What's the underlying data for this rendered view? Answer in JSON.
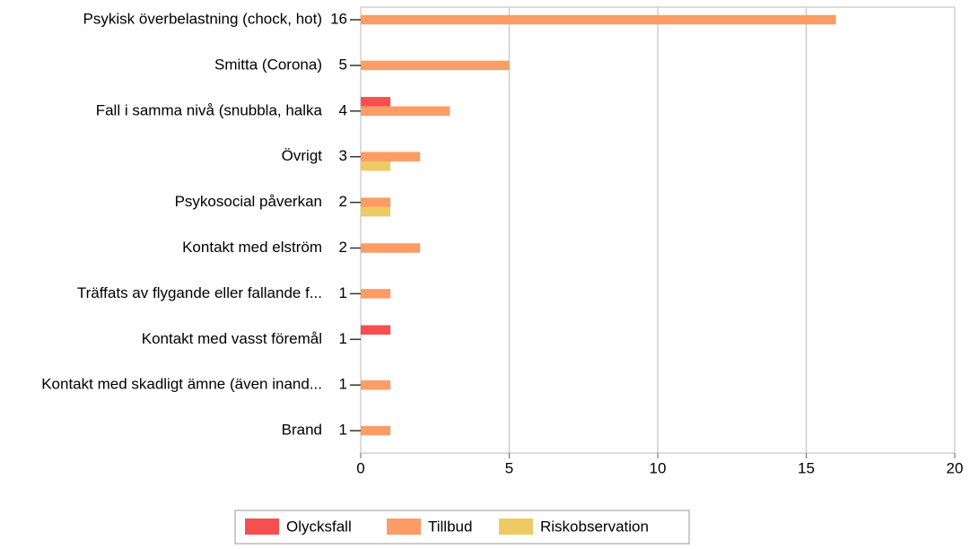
{
  "chart_data": {
    "type": "bar",
    "orientation": "horizontal",
    "categories": [
      "Psykisk överbelastning (chock, hot)",
      "Smitta (Corona)",
      "Fall i samma nivå (snubbla, halka",
      "Övrigt",
      "Psykosocial påverkan",
      "Kontakt med elström",
      "Träffats av flygande eller fallande f...",
      "Kontakt med vasst föremål",
      "Kontakt med skadligt ämne (även inand...",
      "Brand"
    ],
    "totals": [
      16,
      5,
      4,
      3,
      2,
      2,
      1,
      1,
      1,
      1
    ],
    "series": [
      {
        "name": "Olycksfall",
        "color": "#f64f50",
        "values": [
          0,
          0,
          1,
          0,
          0,
          0,
          0,
          1,
          0,
          0
        ]
      },
      {
        "name": "Tillbud",
        "color": "#fd9c64",
        "values": [
          16,
          5,
          3,
          2,
          1,
          2,
          1,
          0,
          1,
          1
        ]
      },
      {
        "name": "Riskobservation",
        "color": "#edca64",
        "values": [
          0,
          0,
          0,
          1,
          1,
          0,
          0,
          0,
          0,
          0
        ]
      }
    ],
    "xlim": [
      0,
      20
    ],
    "xticks": [
      0,
      5,
      10,
      15,
      20
    ],
    "grid": true,
    "legend": "bottom"
  }
}
